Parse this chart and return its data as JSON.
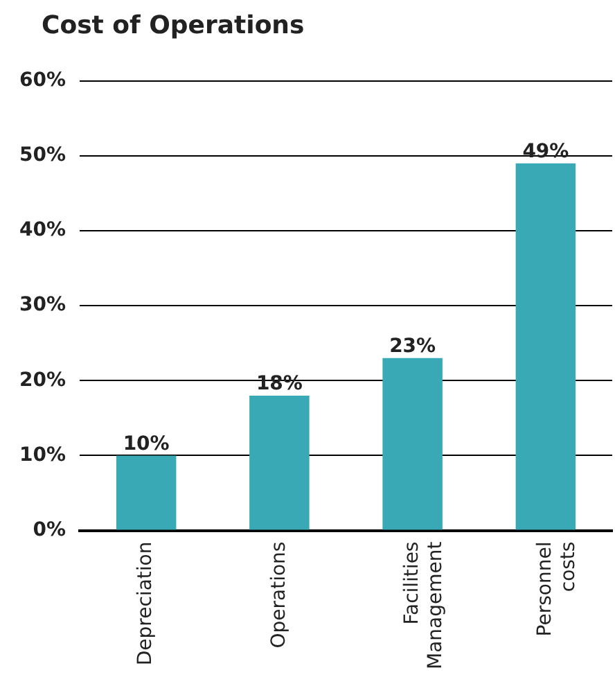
{
  "chart_data": {
    "type": "bar",
    "title": "Cost of Operations",
    "categories": [
      "Depreciation",
      "Operations",
      "Facilities Management",
      "Personnel costs"
    ],
    "values": [
      10,
      18,
      23,
      49
    ],
    "color": "#3aa9b6",
    "ylim": [
      0,
      60
    ],
    "yticks": [
      {
        "value": 0,
        "label": "0%"
      },
      {
        "value": 10,
        "label": "10%"
      },
      {
        "value": 20,
        "label": "20%"
      },
      {
        "value": 30,
        "label": "30%"
      },
      {
        "value": 40,
        "label": "40%"
      },
      {
        "value": 50,
        "label": "50%"
      },
      {
        "value": 60,
        "label": "60%"
      }
    ],
    "value_labels": [
      "10%",
      "18%",
      "23%",
      "49%"
    ],
    "grid": "y",
    "legend": false
  }
}
